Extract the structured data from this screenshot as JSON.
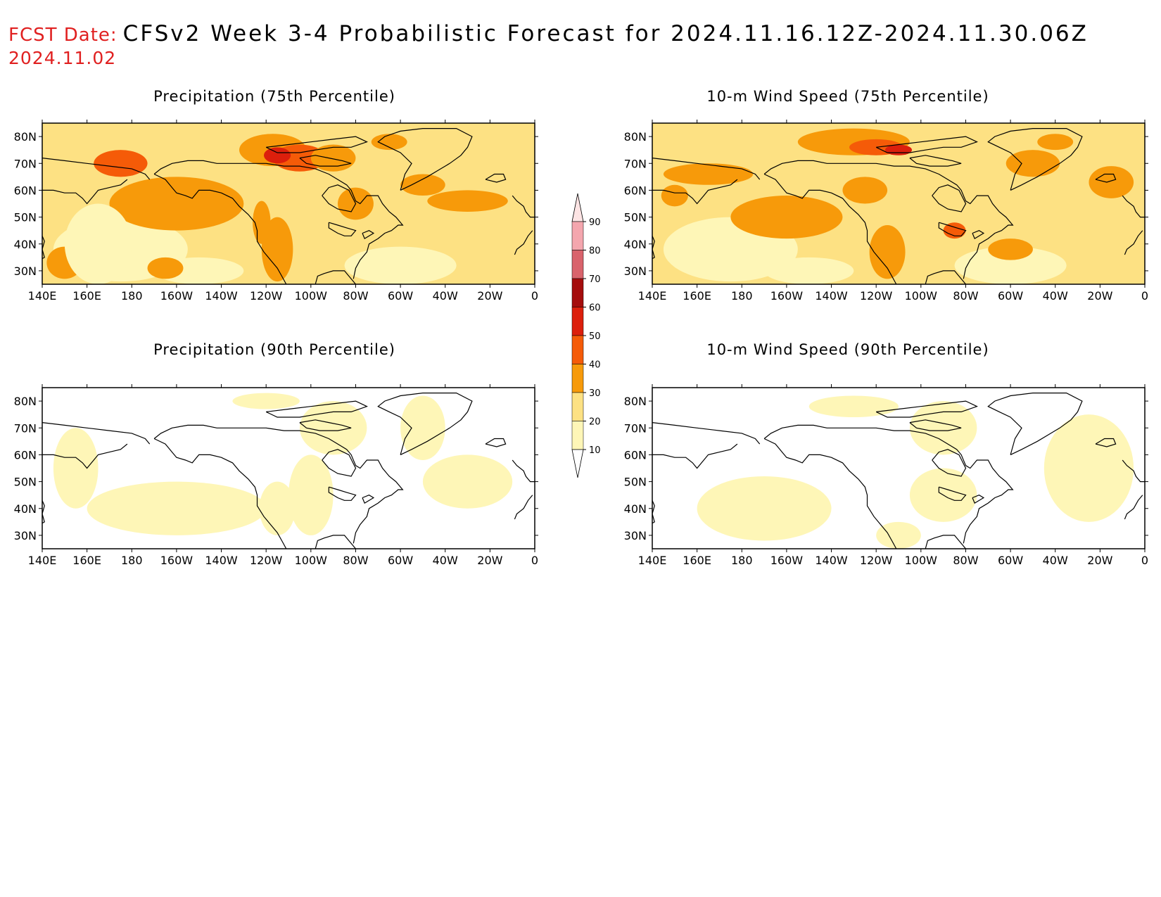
{
  "header": {
    "fcst_label": "FCST Date:",
    "title": "CFSv2 Week 3-4 Probabilistic Forecast for 2024.11.16.12Z-2024.11.30.06Z",
    "fcst_date": "2024.11.02"
  },
  "panels": [
    {
      "id": "precip75",
      "title": "Precipitation (75th Percentile)",
      "field": "precipitation",
      "percentile": 75
    },
    {
      "id": "wind75",
      "title": "10-m Wind Speed (75th Percentile)",
      "field": "wind",
      "percentile": 75
    },
    {
      "id": "precip90",
      "title": "Precipitation (90th Percentile)",
      "field": "precipitation",
      "percentile": 90
    },
    {
      "id": "wind90",
      "title": "10-m Wind Speed (90th Percentile)",
      "field": "wind",
      "percentile": 90
    }
  ],
  "axes": {
    "lon_labels": [
      "140E",
      "160E",
      "180",
      "160W",
      "140W",
      "120W",
      "100W",
      "80W",
      "60W",
      "40W",
      "20W",
      "0"
    ],
    "lat_labels": [
      "80N",
      "70N",
      "60N",
      "50N",
      "40N",
      "30N"
    ]
  },
  "colorbar": {
    "labels": [
      "90",
      "80",
      "70",
      "60",
      "50",
      "40",
      "30",
      "20",
      "10"
    ],
    "colors": [
      "#fde4e4",
      "#f4a6ae",
      "#d9636c",
      "#a50d0d",
      "#dc1f0c",
      "#f55b08",
      "#f79a0a",
      "#fde183",
      "#fef6b7"
    ]
  },
  "colors": {
    "c10": "#fef6b7",
    "c20": "#fde183",
    "c30": "#f79a0a",
    "c40": "#f55b08",
    "c50": "#dc1f0c",
    "title_red": "#e02020"
  }
}
